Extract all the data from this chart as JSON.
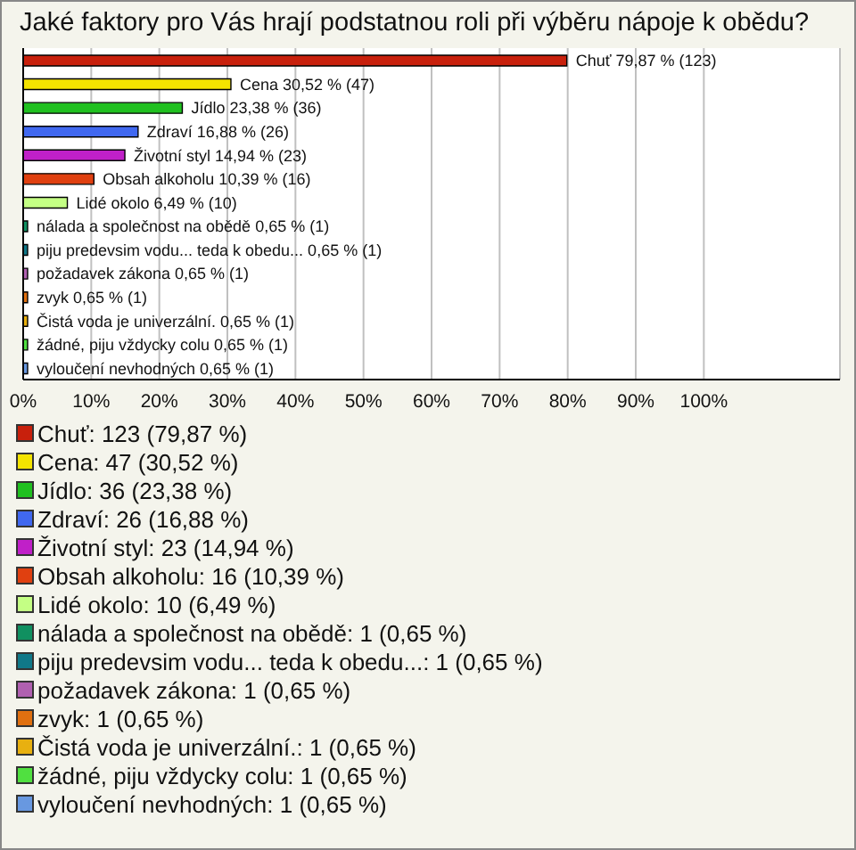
{
  "chart_data": {
    "type": "bar",
    "orientation": "horizontal",
    "title": "Jaké faktory pro Vás hrají podstatnou roli při výběru nápoje k obědu?",
    "categories": [
      "Chuť",
      "Cena",
      "Jídlo",
      "Zdraví",
      "Životní styl",
      "Obsah alkoholu",
      "Lidé okolo",
      "nálada a společnost na obědě",
      "piju predevsim vodu... teda k obedu...",
      "požadavek zákona",
      "zvyk",
      "Čistá voda je univerzální.",
      "žádné, piju vždycky colu",
      "vyloučení nevhodných"
    ],
    "values": [
      79.87,
      30.52,
      23.38,
      16.88,
      14.94,
      10.39,
      6.49,
      0.65,
      0.65,
      0.65,
      0.65,
      0.65,
      0.65,
      0.65
    ],
    "colors": [
      "#c8200c",
      "#f4e400",
      "#20c020",
      "#4068f0",
      "#c020c8",
      "#e04010",
      "#c4ff84",
      "#109060",
      "#107888",
      "#b060b0",
      "#e07010",
      "#e8b010",
      "#50e040",
      "#6898e0"
    ],
    "value_labels": [
      "79,87 % (123)",
      "30,52 % (47)",
      "23,38 % (36)",
      "16,88 % (26)",
      "14,94 % (23)",
      "10,39 % (16)",
      "6,49 % (10)",
      "0,65 % (1)",
      "0,65 % (1)",
      "0,65 % (1)",
      "0,65 % (1)",
      "0,65 % (1)",
      "0,65 % (1)",
      "0,65 % (1)"
    ],
    "annotations": [
      "Chuť: 123 (79,87 %)",
      "Cena: 47 (30,52 %)",
      "Jídlo: 36 (23,38 %)",
      "Zdraví: 26 (16,88 %)",
      "Životní styl: 23 (14,94 %)",
      "Obsah alkoholu: 16 (10,39 %)",
      "Lidé okolo: 10 (6,49 %)",
      "nálada a společnost na obědě: 1 (0,65 %)",
      "piju predevsim vodu... teda k obedu...: 1 (0,65 %)",
      "požadavek zákona: 1 (0,65 %)",
      "zvyk: 1 (0,65 %)",
      "Čistá voda je univerzální.: 1 (0,65 %)",
      "žádné, piju vždycky colu: 1 (0,65 %)",
      "vyloučení nevhodných: 1 (0,65 %)"
    ],
    "xlim": [
      0,
      120
    ],
    "xticks": [
      {
        "value": 0,
        "label": "0%"
      },
      {
        "value": 10,
        "label": "10%"
      },
      {
        "value": 20,
        "label": "20%"
      },
      {
        "value": 30,
        "label": "30%"
      },
      {
        "value": 40,
        "label": "40%"
      },
      {
        "value": 50,
        "label": "50%"
      },
      {
        "value": 60,
        "label": "60%"
      },
      {
        "value": 70,
        "label": "70%"
      },
      {
        "value": 80,
        "label": "80%"
      },
      {
        "value": 90,
        "label": "90%"
      },
      {
        "value": 100,
        "label": "100%"
      }
    ],
    "grid": "x"
  }
}
